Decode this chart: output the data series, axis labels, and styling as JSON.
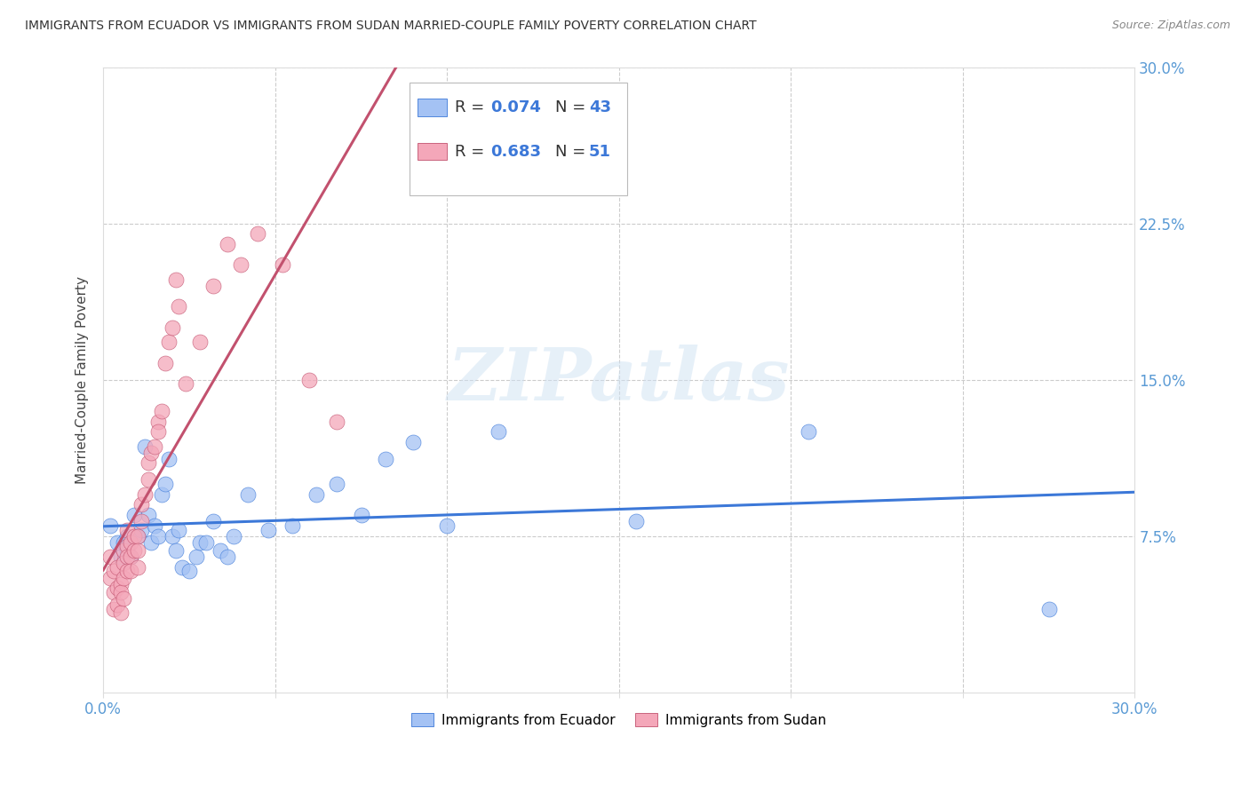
{
  "title": "IMMIGRANTS FROM ECUADOR VS IMMIGRANTS FROM SUDAN MARRIED-COUPLE FAMILY POVERTY CORRELATION CHART",
  "source": "Source: ZipAtlas.com",
  "ylabel": "Married-Couple Family Poverty",
  "xlim": [
    0.0,
    0.3
  ],
  "ylim": [
    0.0,
    0.3
  ],
  "legend_label1": "Immigrants from Ecuador",
  "legend_label2": "Immigrants from Sudan",
  "r1_text": "R = 0.074",
  "n1_text": "N = 43",
  "r2_text": "R = 0.683",
  "n2_text": "N = 51",
  "watermark": "ZIPatlas",
  "ecuador_color": "#a4c2f4",
  "sudan_color": "#f4a7b9",
  "ecuador_line_color": "#3c78d8",
  "sudan_line_color": "#c2516e",
  "r_color": "#3c78d8",
  "n_color": "#3c78d8",
  "ecuador_x": [
    0.002,
    0.004,
    0.005,
    0.006,
    0.007,
    0.007,
    0.008,
    0.009,
    0.01,
    0.011,
    0.012,
    0.013,
    0.014,
    0.015,
    0.016,
    0.017,
    0.018,
    0.019,
    0.02,
    0.021,
    0.022,
    0.023,
    0.025,
    0.027,
    0.028,
    0.03,
    0.032,
    0.034,
    0.036,
    0.038,
    0.042,
    0.048,
    0.055,
    0.062,
    0.068,
    0.075,
    0.082,
    0.09,
    0.1,
    0.115,
    0.155,
    0.205,
    0.275
  ],
  "ecuador_y": [
    0.08,
    0.072,
    0.065,
    0.072,
    0.075,
    0.068,
    0.065,
    0.085,
    0.075,
    0.078,
    0.118,
    0.085,
    0.072,
    0.08,
    0.075,
    0.095,
    0.1,
    0.112,
    0.075,
    0.068,
    0.078,
    0.06,
    0.058,
    0.065,
    0.072,
    0.072,
    0.082,
    0.068,
    0.065,
    0.075,
    0.095,
    0.078,
    0.08,
    0.095,
    0.1,
    0.085,
    0.112,
    0.12,
    0.08,
    0.125,
    0.082,
    0.125,
    0.04
  ],
  "sudan_x": [
    0.002,
    0.002,
    0.003,
    0.003,
    0.003,
    0.004,
    0.004,
    0.004,
    0.005,
    0.005,
    0.005,
    0.006,
    0.006,
    0.006,
    0.006,
    0.007,
    0.007,
    0.007,
    0.007,
    0.008,
    0.008,
    0.008,
    0.009,
    0.009,
    0.01,
    0.01,
    0.01,
    0.011,
    0.011,
    0.012,
    0.013,
    0.013,
    0.014,
    0.015,
    0.016,
    0.016,
    0.017,
    0.018,
    0.019,
    0.02,
    0.021,
    0.022,
    0.024,
    0.028,
    0.032,
    0.036,
    0.04,
    0.045,
    0.052,
    0.06,
    0.068
  ],
  "sudan_y": [
    0.065,
    0.055,
    0.058,
    0.048,
    0.04,
    0.06,
    0.05,
    0.042,
    0.052,
    0.048,
    0.038,
    0.068,
    0.062,
    0.055,
    0.045,
    0.078,
    0.07,
    0.065,
    0.058,
    0.072,
    0.065,
    0.058,
    0.075,
    0.068,
    0.075,
    0.068,
    0.06,
    0.09,
    0.082,
    0.095,
    0.11,
    0.102,
    0.115,
    0.118,
    0.13,
    0.125,
    0.135,
    0.158,
    0.168,
    0.175,
    0.198,
    0.185,
    0.148,
    0.168,
    0.195,
    0.215,
    0.205,
    0.22,
    0.205,
    0.15,
    0.13
  ],
  "background_color": "#ffffff",
  "grid_color": "#cccccc",
  "tick_color": "#5b9bd5",
  "spine_color": "#dddddd"
}
